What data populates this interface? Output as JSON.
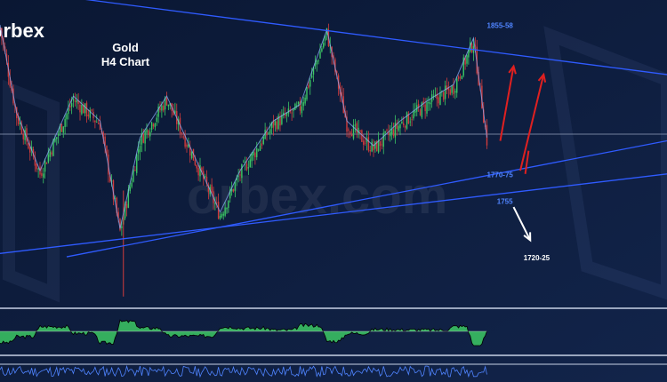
{
  "brand": {
    "logo_text": "orbex",
    "watermark_text": "orbex.com"
  },
  "chart_data": {
    "type": "candlestick",
    "title": "Gold",
    "subtitle": "H4 Chart",
    "price_range": [
      1690,
      1875
    ],
    "overlay_lines": [
      {
        "name": "descending-resistance",
        "from": [
          0,
          1882
        ],
        "to": [
          200,
          1830
        ]
      },
      {
        "name": "rising-trendline-upper",
        "from": [
          20,
          1720
        ],
        "to": [
          200,
          1790
        ]
      },
      {
        "name": "rising-trendline-lower",
        "from": [
          0,
          1722
        ],
        "to": [
          200,
          1770
        ]
      }
    ],
    "horizontal_line": 1794,
    "annotations": [
      {
        "text": "1855-58",
        "anchor": [
          146,
          1858
        ]
      },
      {
        "text": "1770-75",
        "anchor": [
          146,
          1768
        ]
      },
      {
        "text": "1755",
        "anchor": [
          149,
          1752
        ]
      },
      {
        "text": "1720-25",
        "anchor": [
          157,
          1718
        ]
      }
    ],
    "scenario_arrows": [
      {
        "color": "#e02020",
        "from": [
          150,
          1790
        ],
        "to": [
          154,
          1835
        ]
      },
      {
        "color": "#e02020",
        "from": [
          156,
          1772
        ],
        "to": [
          163,
          1830
        ]
      },
      {
        "color": "#ffffff",
        "from": [
          154,
          1750
        ],
        "to": [
          159,
          1730
        ]
      }
    ],
    "key_points": [
      {
        "x": 0,
        "close": 1858
      },
      {
        "x": 5,
        "close": 1805
      },
      {
        "x": 12,
        "close": 1770
      },
      {
        "x": 22,
        "close": 1815
      },
      {
        "x": 30,
        "close": 1800
      },
      {
        "x": 36,
        "close": 1735
      },
      {
        "x": 42,
        "close": 1790
      },
      {
        "x": 50,
        "close": 1815
      },
      {
        "x": 58,
        "close": 1780
      },
      {
        "x": 66,
        "close": 1745
      },
      {
        "x": 72,
        "close": 1770
      },
      {
        "x": 82,
        "close": 1800
      },
      {
        "x": 90,
        "close": 1810
      },
      {
        "x": 98,
        "close": 1855
      },
      {
        "x": 104,
        "close": 1800
      },
      {
        "x": 112,
        "close": 1785
      },
      {
        "x": 120,
        "close": 1800
      },
      {
        "x": 128,
        "close": 1812
      },
      {
        "x": 136,
        "close": 1822
      },
      {
        "x": 142,
        "close": 1850
      },
      {
        "x": 146,
        "close": 1790
      }
    ],
    "indicator_panels": [
      "oscillator",
      "volume"
    ],
    "colors": {
      "background": "#0d1b3a",
      "up": "#3cc864",
      "down": "#d23c3c",
      "trendline": "#2f5bff",
      "label": "#4f84ff"
    }
  }
}
